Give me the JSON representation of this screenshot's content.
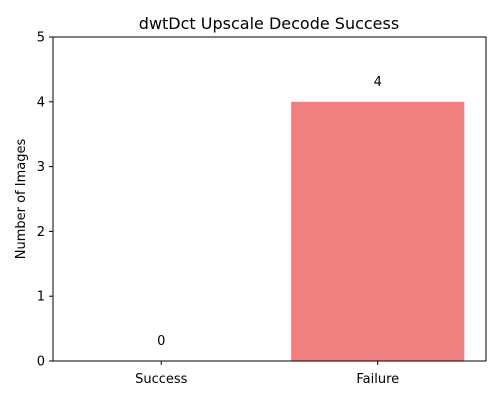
{
  "chart_data": {
    "type": "bar",
    "title": "dwtDct Upscale Decode Success",
    "xlabel": "",
    "ylabel": "Number of Images",
    "categories": [
      "Success",
      "Failure"
    ],
    "values": [
      0,
      4
    ],
    "data_labels": [
      "0",
      "4"
    ],
    "ylim": [
      0,
      5
    ],
    "yticks": [
      "0",
      "1",
      "2",
      "3",
      "4",
      "5"
    ],
    "grid": false,
    "legend": "none",
    "colors": {
      "bars": [
        "#90ee90",
        "#f08080"
      ]
    }
  }
}
